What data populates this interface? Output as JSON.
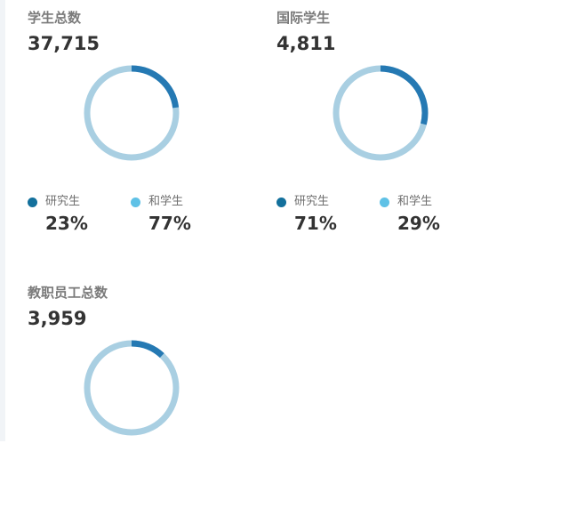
{
  "colors": {
    "arc_dark": "#2579b3",
    "arc_light": "#a9cfe2",
    "legend_dark": "#13709c",
    "legend_light": "#5fc1e6"
  },
  "cards": [
    {
      "title": "学生总数",
      "value": "37,715",
      "arc_fraction": 0.23,
      "legend": [
        {
          "label": "研究生",
          "percent": "23%"
        },
        {
          "label": "和学生",
          "percent": "77%"
        }
      ]
    },
    {
      "title": "国际学生",
      "value": "4,811",
      "arc_fraction": 0.29,
      "legend": [
        {
          "label": "研究生",
          "percent": "71%"
        },
        {
          "label": "和学生",
          "percent": "29%"
        }
      ]
    },
    {
      "title": "教职员工总数",
      "value": "3,959",
      "arc_fraction": 0.12
    }
  ]
}
